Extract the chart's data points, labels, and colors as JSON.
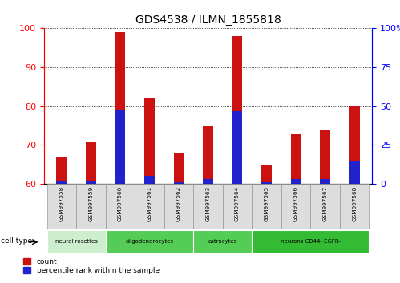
{
  "title": "GDS4538 / ILMN_1855818",
  "samples": [
    "GSM997558",
    "GSM997559",
    "GSM997560",
    "GSM997561",
    "GSM997562",
    "GSM997563",
    "GSM997564",
    "GSM997565",
    "GSM997566",
    "GSM997567",
    "GSM997568"
  ],
  "count_values": [
    67,
    71,
    99,
    82,
    68,
    75,
    98,
    65,
    73,
    74,
    80
  ],
  "percentile_values": [
    2,
    2,
    48,
    5,
    1,
    3,
    47,
    1,
    3,
    3,
    15
  ],
  "ylim_left": [
    60,
    100
  ],
  "ylim_right": [
    0,
    100
  ],
  "yticks_left": [
    60,
    70,
    80,
    90,
    100
  ],
  "ytick_labels_right": [
    "0",
    "25",
    "50",
    "75",
    "100%"
  ],
  "yticks_right": [
    0,
    25,
    50,
    75,
    100
  ],
  "cell_types": [
    {
      "label": "neural rosettes",
      "start": 0,
      "end": 2,
      "color": "#cceecc"
    },
    {
      "label": "oligodendrocytes",
      "start": 2,
      "end": 5,
      "color": "#55cc55"
    },
    {
      "label": "astrocytes",
      "start": 5,
      "end": 7,
      "color": "#55cc55"
    },
    {
      "label": "neurons CD44- EGFR-",
      "start": 7,
      "end": 11,
      "color": "#33bb33"
    }
  ],
  "bar_color_count": "#cc1111",
  "bar_color_percentile": "#2222cc",
  "bar_width": 0.35,
  "grid_color": "black",
  "grid_linestyle": "dotted",
  "left_axis_color": "red",
  "right_axis_color": "blue",
  "bg_color": "white",
  "plot_bg_color": "white"
}
